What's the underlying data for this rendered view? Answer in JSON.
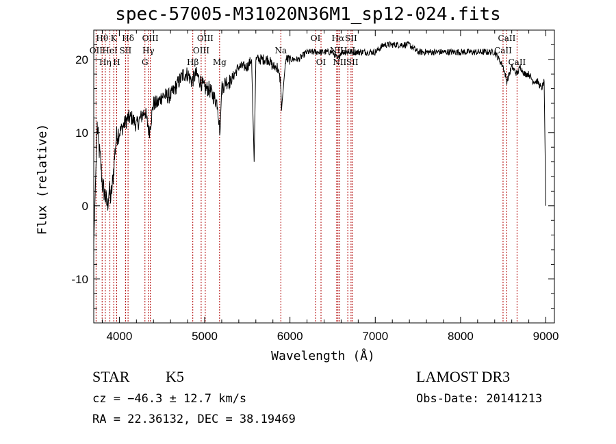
{
  "chart_data": {
    "type": "line",
    "title": "spec-57005-M31020N36M1_sp12-024.fits",
    "xlabel": "Wavelength (Å)",
    "ylabel": "Flux (relative)",
    "xlim": [
      3700,
      9100
    ],
    "ylim": [
      -16,
      24
    ],
    "xticks": [
      4000,
      5000,
      6000,
      7000,
      8000,
      9000
    ],
    "yticks": [
      -10,
      0,
      10,
      20
    ],
    "series": [
      {
        "name": "flux",
        "x": [
          3700,
          3720,
          3740,
          3760,
          3780,
          3800,
          3820,
          3840,
          3860,
          3880,
          3900,
          3920,
          3940,
          3960,
          3980,
          4000,
          4050,
          4100,
          4150,
          4200,
          4250,
          4300,
          4350,
          4400,
          4450,
          4500,
          4550,
          4600,
          4650,
          4700,
          4750,
          4800,
          4850,
          4900,
          4950,
          5000,
          5050,
          5100,
          5150,
          5180,
          5200,
          5250,
          5300,
          5350,
          5400,
          5450,
          5500,
          5550,
          5580,
          5600,
          5650,
          5700,
          5750,
          5800,
          5850,
          5890,
          5900,
          5950,
          6000,
          6100,
          6200,
          6300,
          6400,
          6500,
          6563,
          6600,
          6700,
          6800,
          6900,
          7000,
          7100,
          7200,
          7300,
          7400,
          7500,
          7600,
          7700,
          7800,
          7900,
          8000,
          8100,
          8200,
          8300,
          8400,
          8450,
          8500,
          8542,
          8600,
          8662,
          8700,
          8750,
          8800,
          8850,
          8900,
          8950,
          8980,
          9000
        ],
        "values": [
          -5,
          3,
          11,
          8,
          6,
          3,
          2,
          1,
          0,
          2,
          1,
          3,
          6,
          9,
          10,
          10,
          11,
          12,
          12,
          11,
          12,
          13,
          10,
          14,
          14,
          15,
          15,
          15,
          16,
          17,
          18,
          18,
          17,
          18,
          17,
          16,
          16,
          15,
          14,
          10,
          16,
          17,
          17,
          18,
          19,
          19,
          19,
          20,
          6,
          20,
          20,
          20,
          20,
          19,
          19,
          17,
          13,
          20,
          20,
          20,
          21,
          21,
          21,
          21,
          20,
          21,
          21,
          21,
          21,
          21,
          22,
          22,
          22,
          22,
          21,
          21,
          21,
          21,
          21,
          21,
          21,
          21,
          21,
          21,
          20,
          19,
          17,
          19,
          18,
          19,
          18,
          18,
          17,
          17,
          16,
          17,
          0
        ]
      }
    ],
    "lines": [
      {
        "x": 3727,
        "labels": [
          "OII"
        ],
        "rows": [
          2
        ]
      },
      {
        "x": 3798,
        "labels": [
          "Hθ"
        ],
        "rows": [
          1
        ]
      },
      {
        "x": 3835,
        "labels": [
          "Hη"
        ],
        "rows": [
          3
        ]
      },
      {
        "x": 3889,
        "labels": [
          "HeI"
        ],
        "rows": [
          2
        ]
      },
      {
        "x": 3934,
        "labels": [
          "K"
        ],
        "rows": [
          1
        ]
      },
      {
        "x": 3969,
        "labels": [
          "H"
        ],
        "rows": [
          3
        ]
      },
      {
        "x": 4072,
        "labels": [
          "SII"
        ],
        "rows": [
          2
        ]
      },
      {
        "x": 4102,
        "labels": [
          "Hδ"
        ],
        "rows": [
          1
        ]
      },
      {
        "x": 4300,
        "labels": [
          "G"
        ],
        "rows": [
          3
        ]
      },
      {
        "x": 4340,
        "labels": [
          "Hγ"
        ],
        "rows": [
          2
        ]
      },
      {
        "x": 4363,
        "labels": [
          "OIII"
        ],
        "rows": [
          1
        ]
      },
      {
        "x": 4861,
        "labels": [
          "Hβ"
        ],
        "rows": [
          3
        ]
      },
      {
        "x": 4959,
        "labels": [
          "OIII"
        ],
        "rows": [
          2
        ]
      },
      {
        "x": 5007,
        "labels": [
          "OIII"
        ],
        "rows": [
          1
        ]
      },
      {
        "x": 5175,
        "labels": [
          "Mg"
        ],
        "rows": [
          3
        ]
      },
      {
        "x": 5893,
        "labels": [
          "Na"
        ],
        "rows": [
          2
        ]
      },
      {
        "x": 6300,
        "labels": [
          "OI"
        ],
        "rows": [
          1
        ]
      },
      {
        "x": 6364,
        "labels": [
          "OI"
        ],
        "rows": [
          3
        ]
      },
      {
        "x": 6548,
        "labels": [
          "NII"
        ],
        "rows": [
          2
        ]
      },
      {
        "x": 6563,
        "labels": [
          "Hα"
        ],
        "rows": [
          1
        ]
      },
      {
        "x": 6583,
        "labels": [
          "NII"
        ],
        "rows": [
          3
        ]
      },
      {
        "x": 6678,
        "labels": [
          "HeI"
        ],
        "rows": [
          2
        ]
      },
      {
        "x": 6716,
        "labels": [
          "SII"
        ],
        "rows": [
          1
        ]
      },
      {
        "x": 6731,
        "labels": [
          "SII"
        ],
        "rows": [
          3
        ]
      },
      {
        "x": 8498,
        "labels": [
          "CaII"
        ],
        "rows": [
          2
        ]
      },
      {
        "x": 8542,
        "labels": [
          "CaII"
        ],
        "rows": [
          1
        ]
      },
      {
        "x": 8662,
        "labels": [
          "CaII"
        ],
        "rows": [
          3
        ]
      }
    ],
    "line_color": "#b00000"
  },
  "info": {
    "class": "STAR",
    "subclass": "K5",
    "survey": "LAMOST DR3",
    "cz": "cz = −46.3 ± 12.7 km/s",
    "obs_date": "Obs-Date: 20141213",
    "coords": "RA =  22.36132, DEC =  38.19469"
  }
}
